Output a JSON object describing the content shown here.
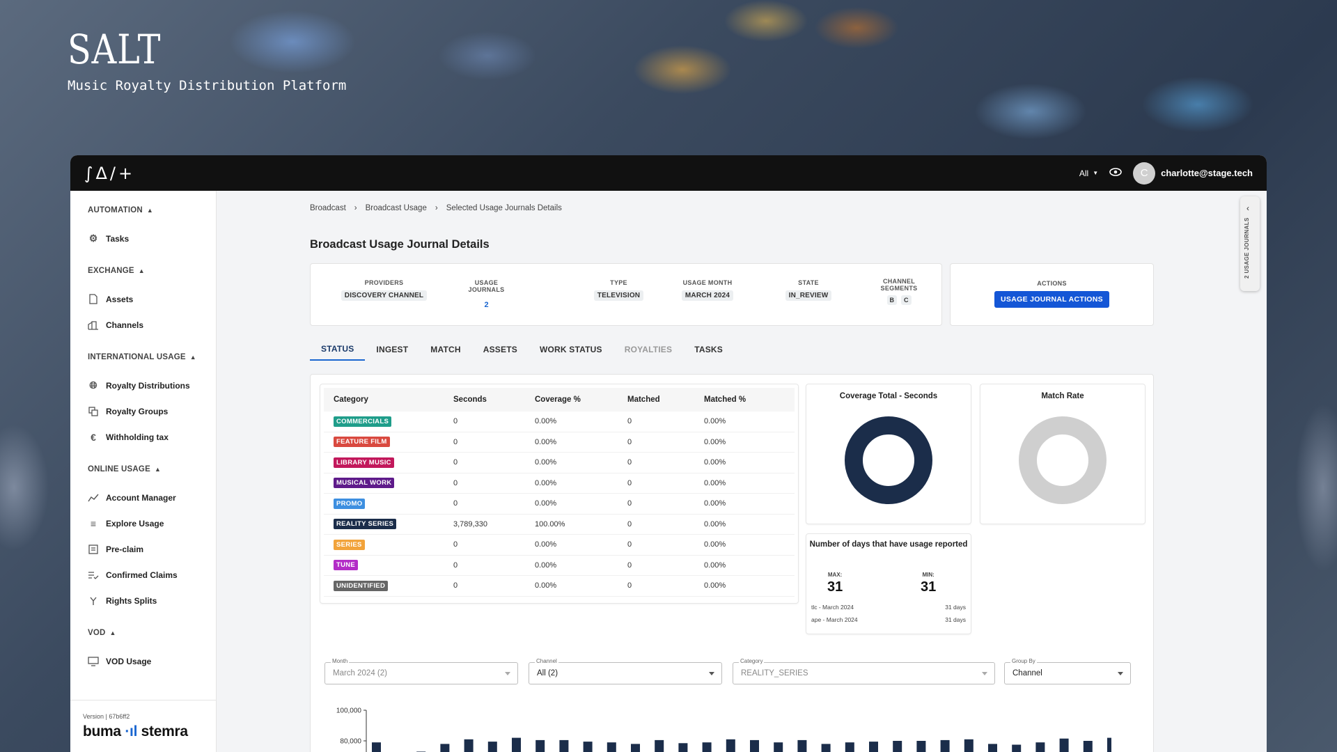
{
  "brand": {
    "title": "SALT",
    "subtitle": "Music Royalty Distribution Platform"
  },
  "topbar": {
    "logo": "∫Δ/+",
    "filter": "All",
    "avatar_initial": "C",
    "user_email": "charlotte@stage.tech"
  },
  "sidebar": {
    "sections": [
      {
        "title": "AUTOMATION",
        "items": [
          {
            "label": "Tasks",
            "icon": "gear-icon"
          }
        ]
      },
      {
        "title": "EXCHANGE",
        "items": [
          {
            "label": "Assets",
            "icon": "file-icon"
          },
          {
            "label": "Channels",
            "icon": "building-icon"
          }
        ]
      },
      {
        "title": "INTERNATIONAL USAGE",
        "items": [
          {
            "label": "Royalty Distributions",
            "icon": "globe-icon"
          },
          {
            "label": "Royalty Groups",
            "icon": "copy-icon"
          },
          {
            "label": "Withholding tax",
            "icon": "euro-icon"
          }
        ]
      },
      {
        "title": "ONLINE USAGE",
        "items": [
          {
            "label": "Account Manager",
            "icon": "chart-icon"
          },
          {
            "label": "Explore Usage",
            "icon": "list-icon"
          },
          {
            "label": "Pre-claim",
            "icon": "document-icon"
          },
          {
            "label": "Confirmed Claims",
            "icon": "checklist-icon"
          },
          {
            "label": "Rights Splits",
            "icon": "split-icon"
          }
        ]
      },
      {
        "title": "VOD",
        "items": [
          {
            "label": "VOD Usage",
            "icon": "monitor-icon"
          }
        ]
      }
    ],
    "version": "Version | 67b6ff2",
    "org_logo_left": "buma",
    "org_logo_right": "stemra"
  },
  "breadcrumb": [
    "Broadcast",
    "Broadcast Usage",
    "Selected Usage Journals Details"
  ],
  "page_title": "Broadcast Usage Journal Details",
  "meta": {
    "providers_label": "PROVIDERS",
    "providers_value": "DISCOVERY CHANNEL",
    "journals_label": "USAGE JOURNALS",
    "journals_value": "2",
    "type_label": "TYPE",
    "type_value": "TELEVISION",
    "month_label": "USAGE MONTH",
    "month_value": "MARCH 2024",
    "state_label": "STATE",
    "state_value": "IN_REVIEW",
    "segments_label_1": "CHANNEL",
    "segments_label_2": "SEGMENTS",
    "segments": [
      "B",
      "C"
    ]
  },
  "actions": {
    "label": "ACTIONS",
    "button": "USAGE JOURNAL ACTIONS"
  },
  "tabs": [
    {
      "label": "STATUS",
      "state": "active"
    },
    {
      "label": "INGEST",
      "state": "normal"
    },
    {
      "label": "MATCH",
      "state": "normal"
    },
    {
      "label": "ASSETS",
      "state": "normal"
    },
    {
      "label": "WORK STATUS",
      "state": "normal"
    },
    {
      "label": "ROYALTIES",
      "state": "disabled"
    },
    {
      "label": "TASKS",
      "state": "normal"
    }
  ],
  "table": {
    "headers": [
      "Category",
      "Seconds",
      "Coverage %",
      "Matched",
      "Matched %"
    ],
    "rows": [
      {
        "category": "COMMERCIALS",
        "color": "#1f9d8a",
        "seconds": "0",
        "coverage": "0.00%",
        "matched": "0",
        "matched_pct": "0.00%"
      },
      {
        "category": "FEATURE FILM",
        "color": "#d9493f",
        "seconds": "0",
        "coverage": "0.00%",
        "matched": "0",
        "matched_pct": "0.00%"
      },
      {
        "category": "LIBRARY MUSIC",
        "color": "#c2185b",
        "seconds": "0",
        "coverage": "0.00%",
        "matched": "0",
        "matched_pct": "0.00%"
      },
      {
        "category": "MUSICAL WORK",
        "color": "#5e1a8a",
        "seconds": "0",
        "coverage": "0.00%",
        "matched": "0",
        "matched_pct": "0.00%"
      },
      {
        "category": "PROMO",
        "color": "#3d8fe0",
        "seconds": "0",
        "coverage": "0.00%",
        "matched": "0",
        "matched_pct": "0.00%"
      },
      {
        "category": "REALITY SERIES",
        "color": "#1b2d4a",
        "seconds": "3,789,330",
        "coverage": "100.00%",
        "matched": "0",
        "matched_pct": "0.00%"
      },
      {
        "category": "SERIES",
        "color": "#f2a33a",
        "seconds": "0",
        "coverage": "0.00%",
        "matched": "0",
        "matched_pct": "0.00%"
      },
      {
        "category": "TUNE",
        "color": "#b32dc7",
        "seconds": "0",
        "coverage": "0.00%",
        "matched": "0",
        "matched_pct": "0.00%"
      },
      {
        "category": "UNIDENTIFIED",
        "color": "#666666",
        "seconds": "0",
        "coverage": "0.00%",
        "matched": "0",
        "matched_pct": "0.00%"
      }
    ]
  },
  "coverage_card": {
    "title": "Coverage Total - Seconds",
    "color": "#1b2d4a"
  },
  "match_card": {
    "title": "Match Rate",
    "color": "#cfcfcf"
  },
  "days_card": {
    "title": "Number of days that have usage reported",
    "max_label": "MAX:",
    "max_value": "31",
    "min_label": "MIN:",
    "min_value": "31",
    "lines": [
      {
        "left": "tlc - March 2024",
        "right": "31 days"
      },
      {
        "left": "ape - March 2024",
        "right": "31 days"
      }
    ]
  },
  "filters": {
    "month": {
      "label": "Month",
      "value": "March 2024 (2)"
    },
    "channel": {
      "label": "Channel",
      "value": "All (2)"
    },
    "category": {
      "label": "Category",
      "value": "REALITY_SERIES"
    },
    "group_by": {
      "label": "Group By",
      "value": "Channel"
    }
  },
  "side_panel": {
    "label": "2 USAGE JOURNALS"
  },
  "chart_data": {
    "type": "bar",
    "y_ticks": [
      "100,000",
      "80,000"
    ],
    "ylim": [
      70000,
      100000
    ],
    "values": [
      79000,
      73000,
      78000,
      81000,
      79500,
      82000,
      80500,
      80500,
      79500,
      79000,
      78000,
      80500,
      78500,
      79000,
      81000,
      80500,
      79000,
      80500,
      78000,
      79000,
      79500,
      80000,
      80000,
      80500,
      81000,
      78000,
      77500,
      79000,
      81500,
      80000,
      82000
    ],
    "color": "#1b2d4a"
  }
}
